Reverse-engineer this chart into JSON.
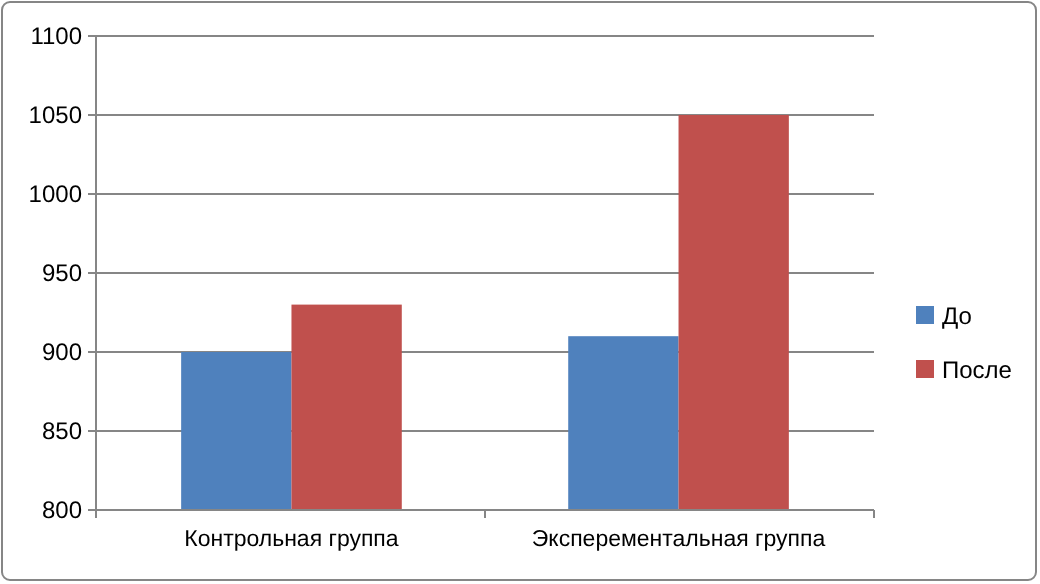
{
  "chart_data": {
    "type": "bar",
    "categories": [
      "Контрольная группа",
      "Эксперементальная группа"
    ],
    "series": [
      {
        "name": "До",
        "color": "#4f81bd",
        "values": [
          900,
          910
        ]
      },
      {
        "name": "После",
        "color": "#c0504d",
        "values": [
          930,
          1050
        ]
      }
    ],
    "ylim": [
      800,
      1100
    ],
    "yticks": [
      800,
      850,
      900,
      950,
      1000,
      1050,
      1100
    ],
    "grid": "y",
    "legend": "right"
  }
}
